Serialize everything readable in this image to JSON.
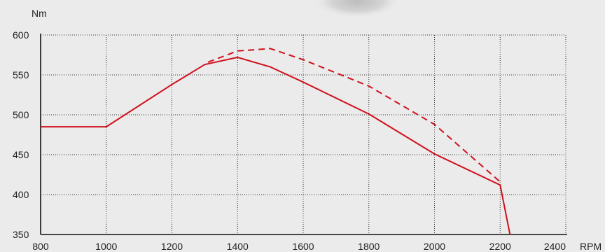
{
  "chart_data": {
    "type": "line",
    "y_unit": "Nm",
    "x_unit": "RPM",
    "xlim": [
      800,
      2400
    ],
    "ylim": [
      350,
      600
    ],
    "x_ticks": [
      800,
      1000,
      1200,
      1400,
      1600,
      1800,
      2000,
      2200,
      2400
    ],
    "y_ticks": [
      350,
      400,
      450,
      500,
      550,
      600
    ],
    "grid": true,
    "series": [
      {
        "style": "solid",
        "color": "#d0101e",
        "points": [
          [
            800,
            485
          ],
          [
            1000,
            485
          ],
          [
            1200,
            538
          ],
          [
            1300,
            563
          ],
          [
            1400,
            572
          ],
          [
            1500,
            560
          ],
          [
            1600,
            541
          ],
          [
            1800,
            501
          ],
          [
            2000,
            451
          ],
          [
            2200,
            412
          ],
          [
            2230,
            350
          ]
        ]
      },
      {
        "style": "dashed",
        "color": "#d0101e",
        "points": [
          [
            1310,
            566
          ],
          [
            1400,
            580
          ],
          [
            1500,
            583
          ],
          [
            1600,
            569
          ],
          [
            1800,
            536
          ],
          [
            2000,
            488
          ],
          [
            2200,
            416
          ]
        ]
      }
    ]
  }
}
